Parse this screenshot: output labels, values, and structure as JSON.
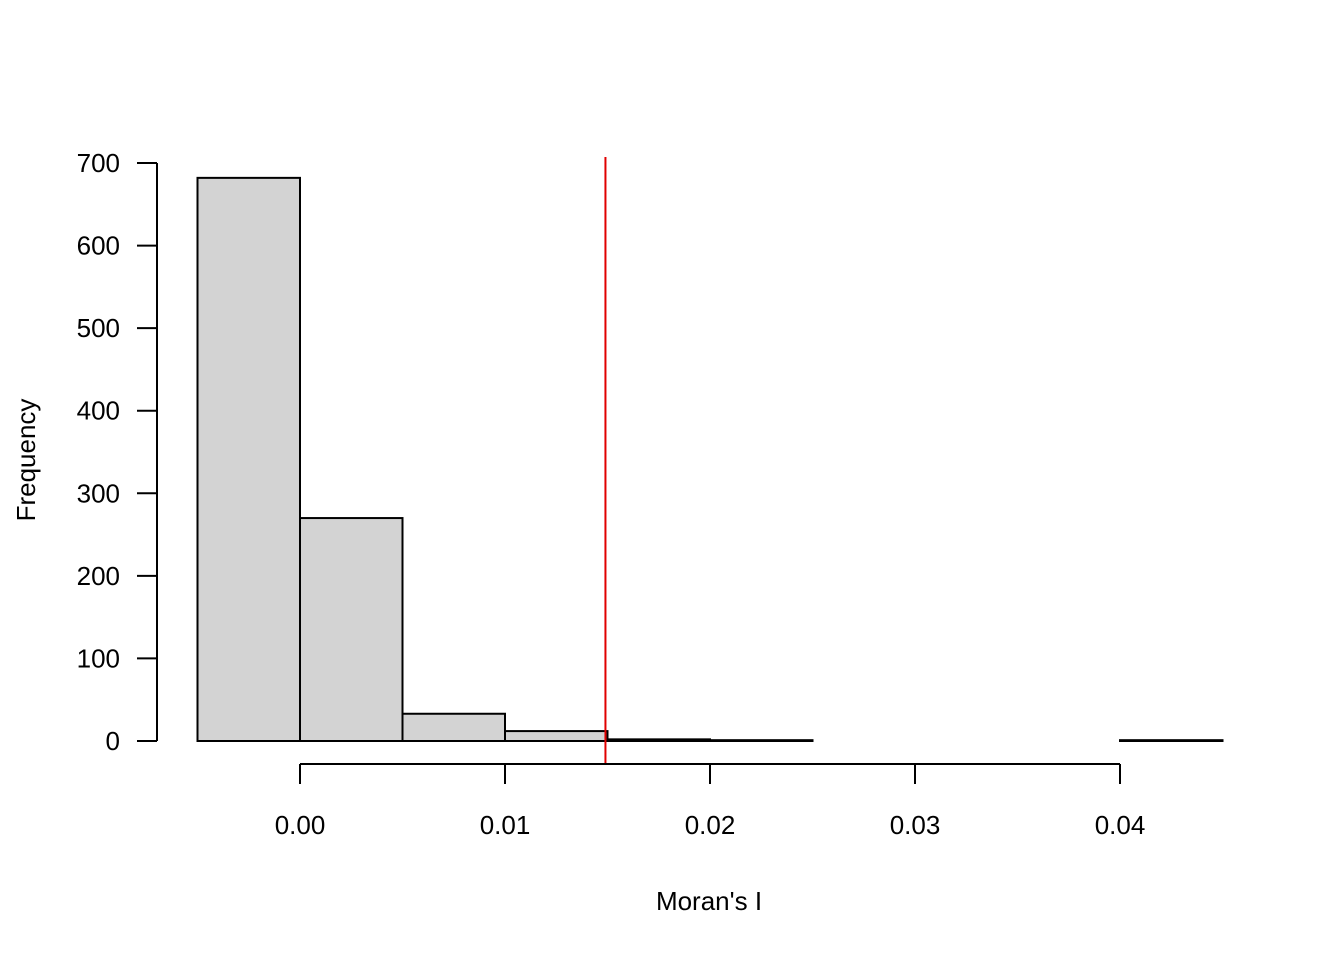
{
  "chart_data": {
    "type": "bar",
    "xlabel": "Moran's I",
    "ylabel": "Frequency",
    "bins": [
      {
        "start": -0.005,
        "end": 0.0,
        "count": 682
      },
      {
        "start": 0.0,
        "end": 0.005,
        "count": 270
      },
      {
        "start": 0.005,
        "end": 0.01,
        "count": 33
      },
      {
        "start": 0.01,
        "end": 0.015,
        "count": 12
      },
      {
        "start": 0.015,
        "end": 0.02,
        "count": 2
      },
      {
        "start": 0.02,
        "end": 0.025,
        "count": 1
      },
      {
        "start": 0.025,
        "end": 0.03,
        "count": 0
      },
      {
        "start": 0.03,
        "end": 0.035,
        "count": 0
      },
      {
        "start": 0.035,
        "end": 0.04,
        "count": 0
      },
      {
        "start": 0.04,
        "end": 0.045,
        "count": 1
      }
    ],
    "x_ticks": [
      "0.00",
      "0.01",
      "0.02",
      "0.03",
      "0.04"
    ],
    "y_ticks": [
      "0",
      "100",
      "200",
      "300",
      "400",
      "500",
      "600",
      "700"
    ],
    "xlim": [
      -0.005,
      0.045
    ],
    "ylim": [
      0,
      700
    ],
    "reference_line": {
      "x": 0.0149,
      "color": "#e00000"
    },
    "bar_fill": "#d3d3d3",
    "bar_stroke": "#000000",
    "grid": false
  }
}
